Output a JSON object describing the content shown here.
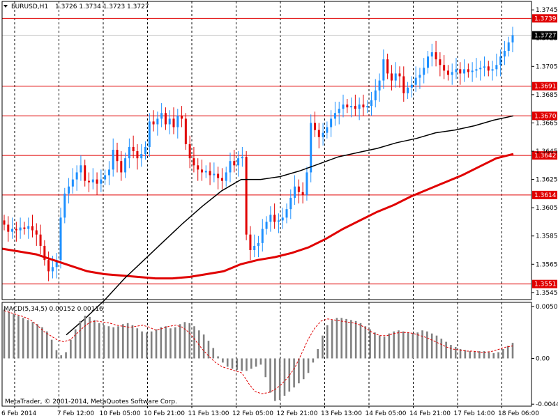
{
  "header": {
    "symbol": "EURUSD,H1",
    "ohlc": "1.3726 1.3734 1.3723 1.3727",
    "dropdown_icon": "triangle-down-icon"
  },
  "footer": {
    "copyright": "MetaTrader, © 2001-2014, MetaQuotes Software Corp."
  },
  "colors": {
    "background": "#ffffff",
    "bull": "#1e90ff",
    "bear": "#e00000",
    "levels": "#e00000",
    "ma_slow": "#e00000",
    "ma_fast": "#000000",
    "macd_hist": "#808080",
    "macd_signal": "#e00000"
  },
  "chart_data": [
    {
      "type": "candlestick",
      "title": "EURUSD,H1",
      "ylim": [
        1.354,
        1.3751
      ],
      "y_ticks": [
        "1.3745",
        "1.3725",
        "1.3705",
        "1.3685",
        "1.3665",
        "1.3645",
        "1.3625",
        "1.3605",
        "1.3585",
        "1.3565",
        "1.3545"
      ],
      "x_ticks": [
        "6 Feb 2014",
        "7 Feb 12:00",
        "10 Feb 05:00",
        "10 Feb 21:00",
        "11 Feb 13:00",
        "12 Feb 05:00",
        "12 Feb 21:00",
        "13 Feb 13:00",
        "14 Feb 05:00",
        "14 Feb 21:00",
        "17 Feb 14:00",
        "18 Feb 06:00"
      ],
      "grid": "vertical-dashed",
      "current_price": "1.3727",
      "horizontal_levels": [
        "1.3739",
        "1.3691",
        "1.3670",
        "1.3642",
        "1.3614",
        "1.3551"
      ],
      "close_series": [
        1.3593,
        1.3588,
        1.359,
        1.3589,
        1.3591,
        1.359,
        1.3592,
        1.3589,
        1.3586,
        1.3578,
        1.3568,
        1.356,
        1.3563,
        1.3568,
        1.3598,
        1.3615,
        1.362,
        1.3625,
        1.363,
        1.3635,
        1.3624,
        1.3623,
        1.3625,
        1.3622,
        1.3625,
        1.3628,
        1.3632,
        1.3646,
        1.3638,
        1.363,
        1.364,
        1.3648,
        1.3645,
        1.364,
        1.3643,
        1.3648,
        1.3666,
        1.3664,
        1.3668,
        1.3672,
        1.3664,
        1.3668,
        1.3662,
        1.367,
        1.3668,
        1.365,
        1.364,
        1.3635,
        1.3632,
        1.363,
        1.3631,
        1.3628,
        1.3629,
        1.3626,
        1.3624,
        1.363,
        1.3638,
        1.3635,
        1.364,
        1.3641,
        1.3586,
        1.3575,
        1.3578,
        1.358,
        1.359,
        1.3595,
        1.36,
        1.3595,
        1.3596,
        1.3598,
        1.3604,
        1.3612,
        1.362,
        1.3616,
        1.3614,
        1.363,
        1.3665,
        1.366,
        1.3655,
        1.3658,
        1.3662,
        1.3668,
        1.3672,
        1.3675,
        1.3678,
        1.3676,
        1.3677,
        1.3675,
        1.3678,
        1.3676,
        1.3677,
        1.3681,
        1.3688,
        1.3695,
        1.371,
        1.37,
        1.3695,
        1.37,
        1.3698,
        1.3686,
        1.369,
        1.3692,
        1.3697,
        1.3699,
        1.3704,
        1.3712,
        1.3715,
        1.371,
        1.3706,
        1.3702,
        1.3699,
        1.3701,
        1.3703,
        1.37,
        1.3703,
        1.3701,
        1.3702,
        1.3703,
        1.3704,
        1.3705,
        1.3702,
        1.3703,
        1.3706,
        1.3712,
        1.3716,
        1.3722,
        1.3727
      ],
      "ma_slow_series": [
        1.3576,
        1.3574,
        1.3572,
        1.3568,
        1.3564,
        1.356,
        1.3558,
        1.3557,
        1.3556,
        1.3555,
        1.3555,
        1.3556,
        1.3558,
        1.356,
        1.3565,
        1.3568,
        1.357,
        1.3573,
        1.3577,
        1.3583,
        1.359,
        1.3596,
        1.3602,
        1.3607,
        1.3613,
        1.3618,
        1.3623,
        1.3628,
        1.3634,
        1.364,
        1.3643
      ],
      "ma_fast_series": [
        1.3515,
        1.3527,
        1.354,
        1.3555,
        1.3568,
        1.3581,
        1.3594,
        1.3606,
        1.3617,
        1.3625,
        1.3625,
        1.3627,
        1.3631,
        1.3636,
        1.3641,
        1.3644,
        1.3647,
        1.3651,
        1.3654,
        1.3658,
        1.366,
        1.3663,
        1.3667,
        1.367
      ]
    },
    {
      "type": "bar",
      "title": "MACD(5,34,5) 0.00152 0.00116",
      "ylim": [
        -0.0046,
        0.0054
      ],
      "y_ticks": [
        "0.00501",
        "0.00",
        "-0.00441"
      ],
      "values": [
        0.0047,
        0.0045,
        0.0043,
        0.0041,
        0.0039,
        0.0037,
        0.0035,
        0.0033,
        0.003,
        0.0026,
        0.0018,
        0.0008,
        0.0003,
        0.0006,
        0.0018,
        0.0028,
        0.0036,
        0.0041,
        0.004,
        0.0037,
        0.0034,
        0.0032,
        0.0031,
        0.003,
        0.0031,
        0.0033,
        0.0034,
        0.0032,
        0.0029,
        0.0026,
        0.0025,
        0.0026,
        0.0028,
        0.003,
        0.0031,
        0.0029,
        0.003,
        0.0033,
        0.0035,
        0.0034,
        0.0031,
        0.0027,
        0.0023,
        0.0017,
        0.001,
        0.0002,
        -0.0004,
        -0.0008,
        -0.001,
        -0.0011,
        -0.0012,
        -0.0012,
        -0.001,
        -0.0008,
        -0.0006,
        -0.0018,
        -0.0033,
        -0.0041,
        -0.004,
        -0.0036,
        -0.0032,
        -0.0028,
        -0.0024,
        -0.002,
        -0.0014,
        -0.0004,
        0.0009,
        0.0022,
        0.0032,
        0.0037,
        0.0039,
        0.0039,
        0.0038,
        0.0037,
        0.0036,
        0.0034,
        0.0031,
        0.0028,
        0.0025,
        0.0022,
        0.0021,
        0.0024,
        0.0026,
        0.0027,
        0.0026,
        0.0025,
        0.0024,
        0.0025,
        0.0027,
        0.0026,
        0.0024,
        0.0022,
        0.0019,
        0.0016,
        0.0013,
        0.0011,
        0.0009,
        0.0008,
        0.0007,
        0.0007,
        0.0007,
        0.0007,
        0.0006,
        0.0005,
        0.0006,
        0.0009,
        0.0012,
        0.0015
      ],
      "signal": [
        0.0046,
        0.0044,
        0.0042,
        0.004,
        0.0037,
        0.0032,
        0.0026,
        0.0022,
        0.0018,
        0.0016,
        0.0018,
        0.0024,
        0.003,
        0.0035,
        0.0036,
        0.0035,
        0.0034,
        0.0032,
        0.0031,
        0.003,
        0.0031,
        0.0032,
        0.003,
        0.0027,
        0.0029,
        0.0031,
        0.0032,
        0.003,
        0.0025,
        0.0017,
        0.0009,
        0.0002,
        -0.0004,
        -0.0008,
        -0.001,
        -0.0012,
        -0.0014,
        -0.0024,
        -0.0032,
        -0.0034,
        -0.0033,
        -0.003,
        -0.0025,
        -0.0018,
        -0.0009,
        0.0004,
        0.0018,
        0.0029,
        0.0036,
        0.0038,
        0.0037,
        0.0036,
        0.0035,
        0.0034,
        0.0032,
        0.0028,
        0.0024,
        0.0022,
        0.0022,
        0.0024,
        0.0025,
        0.0025,
        0.0024,
        0.0022,
        0.002,
        0.0017,
        0.0014,
        0.0011,
        0.0009,
        0.0008,
        0.0007,
        0.0007,
        0.0006,
        0.0006,
        0.0007,
        0.0009,
        0.0011,
        0.0012
      ]
    }
  ]
}
